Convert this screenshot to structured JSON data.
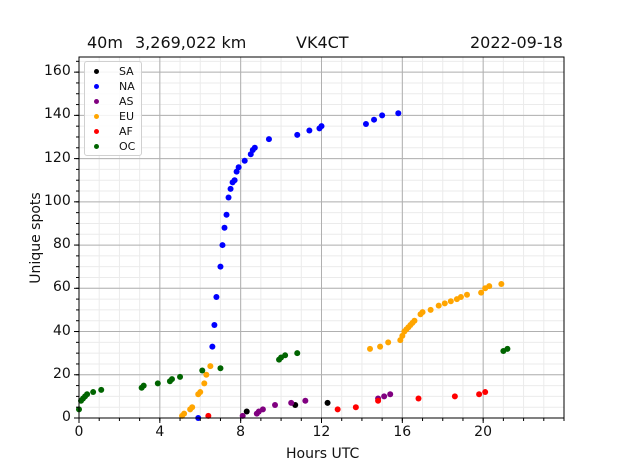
{
  "header": {
    "band": "40m",
    "distance": "3,269,022 km",
    "callsign": "VK4CT",
    "date": "2022-09-18"
  },
  "colors": {
    "SA": "#000000",
    "NA": "#0000ff",
    "AS": "#800080",
    "EU": "#ffa500",
    "AF": "#ff0000",
    "OC": "#006400"
  },
  "chart_data": {
    "type": "scatter",
    "title": "40m   3,269,022 km   VK4CT   2022-09-18",
    "xlabel": "Hours UTC",
    "ylabel": "Unique spots",
    "xlim": [
      0,
      24
    ],
    "ylim": [
      0,
      167
    ],
    "xticks": [
      0,
      4,
      8,
      12,
      16,
      20
    ],
    "yticks": [
      0,
      20,
      40,
      60,
      80,
      100,
      120,
      140,
      160
    ],
    "grid": true,
    "minor_grid": true,
    "legend_position": "upper left",
    "legend": [
      "SA",
      "NA",
      "AS",
      "EU",
      "AF",
      "OC"
    ],
    "series": [
      {
        "name": "SA",
        "color": "#000000",
        "x": [
          8.3,
          10.7,
          12.3
        ],
        "y": [
          3,
          6,
          7
        ]
      },
      {
        "name": "NA",
        "color": "#0000ff",
        "x": [
          5.9,
          6.6,
          6.7,
          6.8,
          7.0,
          7.1,
          7.2,
          7.3,
          7.4,
          7.5,
          7.6,
          7.7,
          7.8,
          7.9,
          8.2,
          8.5,
          8.6,
          8.7,
          9.4,
          10.8,
          11.4,
          11.9,
          12.0,
          14.2,
          14.6,
          15.0,
          15.8
        ],
        "y": [
          0,
          33,
          43,
          56,
          70,
          80,
          88,
          94,
          102,
          106,
          109,
          110,
          114,
          116,
          119,
          122,
          124,
          125,
          129,
          131,
          133,
          134,
          135,
          136,
          138,
          140,
          141
        ]
      },
      {
        "name": "AS",
        "color": "#800080",
        "x": [
          8.1,
          8.8,
          8.9,
          9.1,
          9.7,
          10.5,
          11.2,
          14.8,
          15.1,
          15.4
        ],
        "y": [
          1,
          2,
          3,
          4,
          6,
          7,
          8,
          9,
          10,
          11
        ]
      },
      {
        "name": "EU",
        "color": "#ffa500",
        "x": [
          5.1,
          5.2,
          5.5,
          5.6,
          5.9,
          6.0,
          6.2,
          6.3,
          6.5,
          14.4,
          14.9,
          15.3,
          15.9,
          16.0,
          16.1,
          16.2,
          16.3,
          16.4,
          16.5,
          16.6,
          16.9,
          17.0,
          17.4,
          17.8,
          18.1,
          18.4,
          18.7,
          18.9,
          19.2,
          19.9,
          20.1,
          20.3,
          20.9
        ],
        "y": [
          1,
          2,
          4,
          5,
          11,
          12,
          16,
          20,
          24,
          32,
          33,
          35,
          36,
          38,
          40,
          41,
          42,
          43,
          44,
          45,
          48,
          49,
          50,
          52,
          53,
          54,
          55,
          56,
          57,
          58,
          60,
          61,
          62
        ]
      },
      {
        "name": "AF",
        "color": "#ff0000",
        "x": [
          6.4,
          12.8,
          13.7,
          14.8,
          16.8,
          18.6,
          19.8,
          20.1
        ],
        "y": [
          1,
          4,
          5,
          8,
          9,
          10,
          11,
          12
        ]
      },
      {
        "name": "OC",
        "color": "#006400",
        "x": [
          0.0,
          0.1,
          0.2,
          0.3,
          0.4,
          0.7,
          1.1,
          3.1,
          3.2,
          3.9,
          4.5,
          4.6,
          5.0,
          6.1,
          7.0,
          9.9,
          10.0,
          10.2,
          10.8,
          21.0,
          21.2
        ],
        "y": [
          4,
          8,
          9,
          10,
          11,
          12,
          13,
          14,
          15,
          16,
          17,
          18,
          19,
          22,
          23,
          27,
          28,
          29,
          30,
          31,
          32
        ]
      }
    ]
  }
}
